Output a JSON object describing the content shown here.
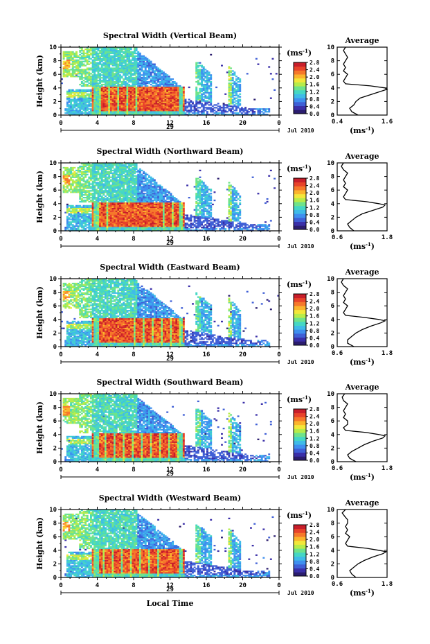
{
  "figure": {
    "xlabel": "Local Time",
    "date_label": "Jul 2010",
    "day_label": "29",
    "colorbar_unit": "(ms",
    "colorbar_unit_exp": "-1",
    "colorbar_unit_close": ")",
    "colormap": [
      "#2b1d6e",
      "#3a2fa8",
      "#3f5fd6",
      "#3f8fef",
      "#3fbbe8",
      "#45d7c4",
      "#6fe38a",
      "#b7ec4a",
      "#f3e73a",
      "#fbb42c",
      "#f6782a",
      "#e8432a",
      "#c81e2a"
    ],
    "vmin": 0.0,
    "vmax": 2.8
  },
  "chart_data": [
    {
      "type": "heatmap",
      "title": "Spectral Width (Vertical Beam)",
      "ylabel": "Height (km)",
      "xlim": [
        0,
        24
      ],
      "ylim": [
        0,
        10
      ],
      "xticks": [
        "0",
        "4",
        "8",
        "12",
        "16",
        "20",
        "0"
      ],
      "yticks": [
        "0",
        "2",
        "4",
        "6",
        "8",
        "10"
      ],
      "colorbar_ticks": [
        "0.0",
        "0.4",
        "0.8",
        "1.2",
        "1.6",
        "2.0",
        "2.4",
        "2.8"
      ],
      "profile": {
        "title": "Average",
        "xlabel": "(ms",
        "xlabel_exp": "-1",
        "xlabel_close": ")",
        "xlim": [
          0.4,
          1.6
        ],
        "xticks": [
          "0.4",
          "1.6"
        ],
        "height_km": [
          0,
          0.5,
          1,
          1.5,
          2,
          2.5,
          3,
          3.5,
          3.8,
          4,
          4.3,
          4.6,
          5,
          5.5,
          6,
          6.5,
          7,
          7.5,
          8,
          8.5,
          9,
          9.5,
          10
        ],
        "width": [
          0.9,
          0.75,
          0.7,
          0.8,
          0.85,
          0.95,
          1.2,
          1.45,
          1.6,
          1.55,
          1.2,
          0.6,
          0.55,
          0.6,
          0.65,
          0.55,
          0.6,
          0.55,
          0.6,
          0.65,
          0.6,
          0.55,
          0.6
        ]
      }
    },
    {
      "type": "heatmap",
      "title": "Spectral Width (Northward Beam)",
      "ylabel": "Height (km)",
      "xlim": [
        0,
        24
      ],
      "ylim": [
        0,
        10
      ],
      "xticks": [
        "0",
        "4",
        "8",
        "12",
        "16",
        "20",
        "0"
      ],
      "yticks": [
        "0",
        "2",
        "4",
        "6",
        "8",
        "10"
      ],
      "colorbar_ticks": [
        "0.0",
        "0.4",
        "0.8",
        "1.2",
        "1.6",
        "2.0",
        "2.4",
        "2.8"
      ],
      "profile": {
        "title": "Average",
        "xlabel": "(ms",
        "xlabel_exp": "-1",
        "xlabel_close": ")",
        "xlim": [
          0.6,
          1.8
        ],
        "xticks": [
          "0.6",
          "1.8"
        ],
        "height_km": [
          0,
          0.5,
          1,
          1.5,
          2,
          2.5,
          3,
          3.5,
          3.8,
          4,
          4.3,
          4.6,
          5,
          5.5,
          6,
          6.5,
          7,
          7.5,
          8,
          8.5,
          9,
          9.5,
          10
        ],
        "width": [
          1.0,
          0.9,
          0.85,
          0.95,
          1.05,
          1.2,
          1.45,
          1.7,
          1.75,
          1.6,
          1.3,
          0.8,
          0.75,
          0.8,
          0.85,
          0.75,
          0.8,
          0.75,
          0.8,
          0.85,
          0.75,
          0.7,
          0.75
        ]
      }
    },
    {
      "type": "heatmap",
      "title": "Spectral Width (Eastward Beam)",
      "ylabel": "Height (km)",
      "xlim": [
        0,
        24
      ],
      "ylim": [
        0,
        10
      ],
      "xticks": [
        "0",
        "4",
        "8",
        "12",
        "16",
        "20",
        "0"
      ],
      "yticks": [
        "0",
        "2",
        "4",
        "6",
        "8",
        "10"
      ],
      "colorbar_ticks": [
        "0.0",
        "0.4",
        "0.8",
        "1.2",
        "1.6",
        "2.0",
        "2.4",
        "2.8"
      ],
      "profile": {
        "title": "Average",
        "xlabel": "(ms",
        "xlabel_exp": "-1",
        "xlabel_close": ")",
        "xlim": [
          0.6,
          1.8
        ],
        "xticks": [
          "0.6",
          "1.8"
        ],
        "height_km": [
          0,
          0.5,
          1,
          1.5,
          2,
          2.5,
          3,
          3.5,
          3.8,
          4,
          4.3,
          4.6,
          5,
          5.5,
          6,
          6.5,
          7,
          7.5,
          8,
          8.5,
          9,
          9.5,
          10
        ],
        "width": [
          1.0,
          0.85,
          0.85,
          0.95,
          1.05,
          1.2,
          1.4,
          1.65,
          1.75,
          1.6,
          1.25,
          0.8,
          0.75,
          0.8,
          0.85,
          0.75,
          0.8,
          0.75,
          0.8,
          0.85,
          0.75,
          0.7,
          0.75
        ]
      }
    },
    {
      "type": "heatmap",
      "title": "Spectral Width (Southward Beam)",
      "ylabel": "Height (km)",
      "xlim": [
        0,
        24
      ],
      "ylim": [
        0,
        10
      ],
      "xticks": [
        "0",
        "4",
        "8",
        "12",
        "16",
        "20",
        "0"
      ],
      "yticks": [
        "0",
        "2",
        "4",
        "6",
        "8",
        "10"
      ],
      "colorbar_ticks": [
        "0.0",
        "0.4",
        "0.8",
        "1.2",
        "1.6",
        "2.0",
        "2.4",
        "2.8"
      ],
      "profile": {
        "title": "Average",
        "xlabel": "(ms",
        "xlabel_exp": "-1",
        "xlabel_close": ")",
        "xlim": [
          0.6,
          1.8
        ],
        "xticks": [
          "0.6",
          "1.8"
        ],
        "height_km": [
          0,
          0.5,
          1,
          1.5,
          2,
          2.5,
          3,
          3.5,
          3.8,
          4,
          4.3,
          4.6,
          5,
          5.5,
          6,
          6.5,
          7,
          7.5,
          8,
          8.5,
          9,
          9.5,
          10
        ],
        "width": [
          1.05,
          0.9,
          0.85,
          0.95,
          1.1,
          1.25,
          1.45,
          1.7,
          1.75,
          1.6,
          1.3,
          0.8,
          0.75,
          0.85,
          0.85,
          0.75,
          0.8,
          0.75,
          0.8,
          0.85,
          0.75,
          0.72,
          0.78
        ]
      }
    },
    {
      "type": "heatmap",
      "title": "Spectral Width (Westward Beam)",
      "ylabel": "Height (km)",
      "xlim": [
        0,
        24
      ],
      "ylim": [
        0,
        10
      ],
      "xticks": [
        "0",
        "4",
        "8",
        "12",
        "16",
        "20",
        "0"
      ],
      "yticks": [
        "0",
        "2",
        "4",
        "6",
        "8",
        "10"
      ],
      "colorbar_ticks": [
        "0.0",
        "0.4",
        "0.8",
        "1.2",
        "1.6",
        "2.0",
        "2.4",
        "2.8"
      ],
      "profile": {
        "title": "Average",
        "xlabel": "(ms",
        "xlabel_exp": "-1",
        "xlabel_close": ")",
        "xlim": [
          0.6,
          1.8
        ],
        "xticks": [
          "0.6",
          "1.8"
        ],
        "height_km": [
          0,
          0.5,
          1,
          1.5,
          2,
          2.5,
          3,
          3.5,
          3.8,
          4,
          4.3,
          4.6,
          5,
          5.5,
          6,
          6.5,
          7,
          7.5,
          8,
          8.5,
          9,
          9.5,
          10
        ],
        "width": [
          1.05,
          0.95,
          0.9,
          1.0,
          1.1,
          1.25,
          1.45,
          1.7,
          1.78,
          1.6,
          1.3,
          0.85,
          0.8,
          0.85,
          0.9,
          0.8,
          0.85,
          0.8,
          0.85,
          0.85,
          0.78,
          0.72,
          0.8
        ]
      }
    }
  ]
}
